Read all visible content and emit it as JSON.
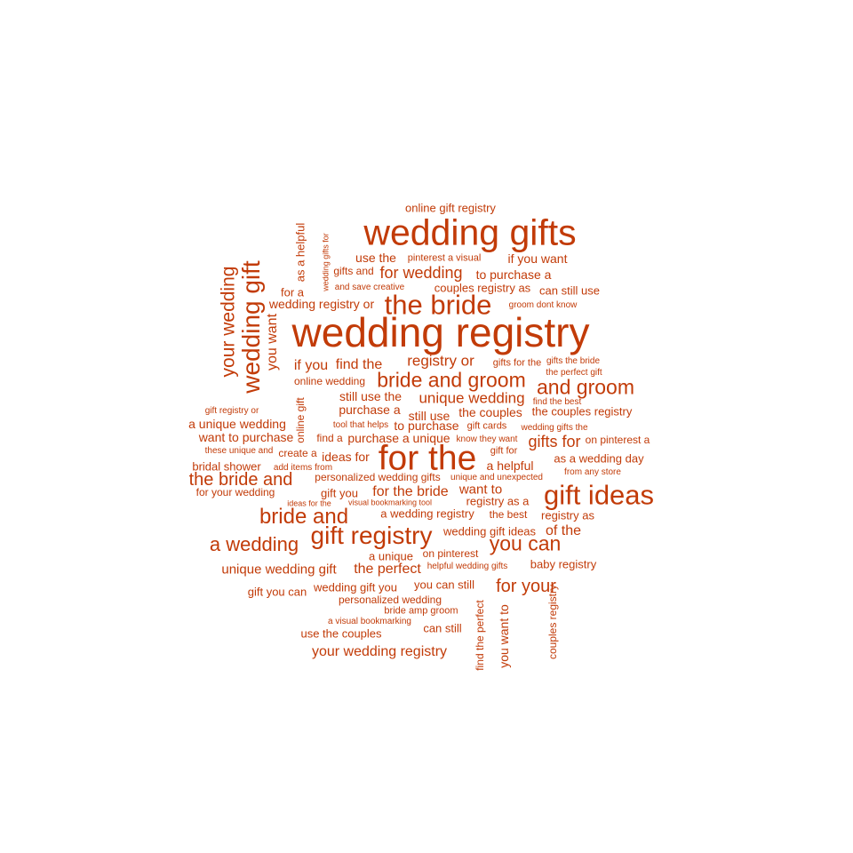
{
  "color": "#c23b08",
  "words": [
    "wedding registry",
    "wedding gifts",
    "for the",
    "gift ideas",
    "the bride",
    "gift registry",
    "wedding gift",
    "bride and groom",
    "and groom",
    "bride and",
    "you can",
    "a wedding",
    "your wedding",
    "the bride and",
    "for your",
    "online gift registry",
    "pinterest a visual",
    "use the",
    "if you want",
    "gifts and",
    "for wedding",
    "to purchase a",
    "as a helpful",
    "wedding gifts for",
    "and save creative",
    "couples registry as",
    "for a",
    "can still use",
    "wedding registry or",
    "groom dont know",
    "you want",
    "if you",
    "find the",
    "registry or",
    "gifts for the",
    "gifts the bride",
    "the perfect gift",
    "online wedding",
    "online gift",
    "still use the",
    "unique wedding",
    "find the best",
    "gift registry or",
    "purchase a",
    "still use",
    "the couples",
    "the couples registry",
    "a unique wedding",
    "tool that helps",
    "to purchase",
    "gift cards",
    "wedding gifts the",
    "want to purchase",
    "find a",
    "purchase a unique",
    "know they want",
    "gifts for",
    "on pinterest a",
    "these unique and",
    "create a",
    "gift for",
    "ideas for",
    "a helpful",
    "as a wedding day",
    "bridal shower",
    "add items from",
    "personalized wedding gifts",
    "unique and unexpected",
    "from any store",
    "for your wedding",
    "gift you",
    "for the bride",
    "want to",
    "ideas for the",
    "visual bookmarking tool",
    "registry as a",
    "a wedding registry",
    "the best",
    "registry as",
    "wedding gift ideas",
    "of the",
    "a unique",
    "on pinterest",
    "unique wedding gift",
    "the perfect",
    "helpful wedding gifts",
    "baby registry",
    "gift you can",
    "wedding gift you",
    "you can still",
    "personalized wedding",
    "bride amp groom",
    "a visual bookmarking",
    "can still",
    "use the couples",
    "your wedding registry",
    "find the perfect",
    "you want to",
    "couples registry"
  ]
}
